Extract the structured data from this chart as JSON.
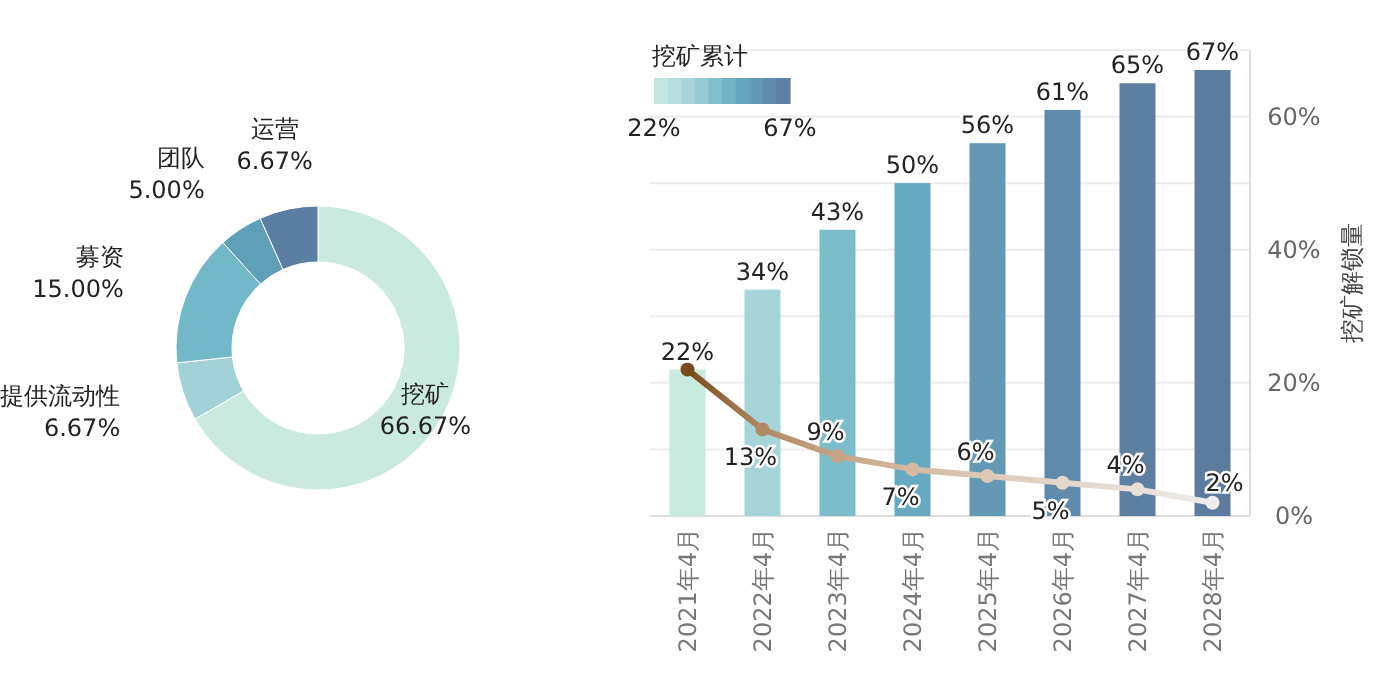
{
  "chart_data": [
    {
      "type": "donut",
      "categories": [
        "挖矿",
        "提供流动性",
        "募资",
        "团队",
        "运营"
      ],
      "values": [
        66.67,
        6.67,
        15.0,
        5.0,
        6.67
      ],
      "value_labels": [
        "66.67%",
        "6.67%",
        "15.00%",
        "5.00%",
        "6.67%"
      ],
      "colors": [
        "#cbeadf",
        "#a2d2d8",
        "#72b8c8",
        "#5f9fb7",
        "#5b7fa3"
      ]
    },
    {
      "type": "bar",
      "categories": [
        "2021年4月",
        "2022年4月",
        "2023年4月",
        "2024年4月",
        "2025年4月",
        "2026年4月",
        "2027年4月",
        "2028年4月"
      ],
      "series": [
        {
          "type": "bar",
          "colors": [
            "#c9eadf",
            "#a6d4d9",
            "#7dbdca",
            "#66a9c0",
            "#6399b3",
            "#5f8aab",
            "#5d7fa2",
            "#5d7b9e"
          ],
          "values": [
            22,
            34,
            43,
            50,
            56,
            61,
            65,
            67
          ],
          "value_labels": [
            "22%",
            "34%",
            "43%",
            "50%",
            "56%",
            "61%",
            "65%",
            "67%"
          ]
        },
        {
          "type": "line",
          "colors": [
            "#7a4a1a",
            "#b08a64",
            "#c5a586",
            "#d2b9a0",
            "#dccab8",
            "#e3d6ca",
            "#e8dfd7",
            "#eeeeee"
          ],
          "values": [
            22,
            13,
            9,
            7,
            6,
            5,
            4,
            2
          ],
          "value_labels": [
            null,
            "13%",
            "9%",
            "7%",
            "6%",
            "5%",
            "4%",
            "2%"
          ],
          "marker": "circle"
        }
      ],
      "ylabel": "挖矿解锁量",
      "ylim": [
        0,
        70
      ],
      "yticks": [
        {
          "value": 0,
          "label": "0%"
        },
        {
          "value": 10,
          "label": null
        },
        {
          "value": 20,
          "label": "20%"
        },
        {
          "value": 30,
          "label": null
        },
        {
          "value": 40,
          "label": "40%"
        },
        {
          "value": 50,
          "label": null
        },
        {
          "value": 60,
          "label": "60%"
        },
        {
          "value": 70,
          "label": null
        }
      ],
      "grid": "y",
      "clabel": "挖矿累计",
      "annotations": [
        "22%",
        "67%"
      ]
    }
  ]
}
